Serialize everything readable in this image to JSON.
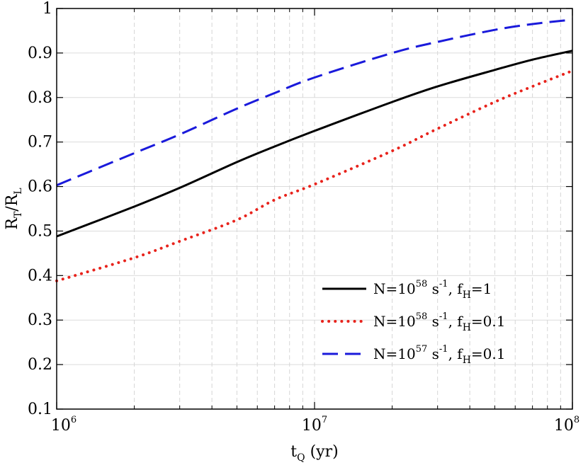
{
  "chart_data": {
    "type": "line",
    "xlabel": {
      "main": "t",
      "sub": "Q",
      "unit": " (yr)"
    },
    "ylabel": {
      "r1": "R",
      "r1sub": "T",
      "slash": "/",
      "r2": "R",
      "r2sub": "L"
    },
    "xscale": "log",
    "xlim": [
      1000000,
      100000000
    ],
    "ylim": [
      0.1,
      1.0
    ],
    "xticks": [
      {
        "value": 1000000,
        "base": "10",
        "exp": "6"
      },
      {
        "value": 10000000,
        "base": "10",
        "exp": "7"
      },
      {
        "value": 100000000,
        "base": "10",
        "exp": "8"
      }
    ],
    "yticks": [
      {
        "value": 0.1,
        "label": "0.1"
      },
      {
        "value": 0.2,
        "label": "0.2"
      },
      {
        "value": 0.3,
        "label": "0.3"
      },
      {
        "value": 0.4,
        "label": "0.4"
      },
      {
        "value": 0.5,
        "label": "0.5"
      },
      {
        "value": 0.6,
        "label": "0.6"
      },
      {
        "value": 0.7,
        "label": "0.7"
      },
      {
        "value": 0.8,
        "label": "0.8"
      },
      {
        "value": 0.9,
        "label": "0.9"
      },
      {
        "value": 1.0,
        "label": "1"
      }
    ],
    "grid": true,
    "legend_position": "lower-right",
    "series": [
      {
        "name": "N=10^58 s^-1, f_H=1",
        "legend": {
          "pre": "N=10",
          "exp1": "58",
          "mid": " s",
          "exp2": "-1",
          "post": ", f",
          "sub": "H",
          "tail": "=1"
        },
        "color": "#000000",
        "style": "solid",
        "x": [
          1000000,
          2000000,
          3000000,
          5000000,
          7000000,
          10000000,
          20000000,
          30000000,
          50000000,
          70000000,
          100000000
        ],
        "y": [
          0.488,
          0.555,
          0.597,
          0.655,
          0.69,
          0.725,
          0.79,
          0.825,
          0.862,
          0.885,
          0.905
        ]
      },
      {
        "name": "N=10^58 s^-1, f_H=0.1",
        "legend": {
          "pre": "N=10",
          "exp1": "58",
          "mid": " s",
          "exp2": "-1",
          "post": ", f",
          "sub": "H",
          "tail": "=0.1"
        },
        "color": "#e8231c",
        "style": "dotted",
        "x": [
          1000000,
          2000000,
          3000000,
          5000000,
          7000000,
          10000000,
          20000000,
          30000000,
          50000000,
          70000000,
          100000000
        ],
        "y": [
          0.388,
          0.44,
          0.477,
          0.525,
          0.57,
          0.605,
          0.68,
          0.73,
          0.79,
          0.825,
          0.86
        ]
      },
      {
        "name": "N=10^57 s^-1, f_H=0.1",
        "legend": {
          "pre": "N=10",
          "exp1": "57",
          "mid": " s",
          "exp2": "-1",
          "post": ", f",
          "sub": "H",
          "tail": "=0.1"
        },
        "color": "#1a1adb",
        "style": "dashed",
        "x": [
          1000000,
          2000000,
          3000000,
          5000000,
          7000000,
          10000000,
          20000000,
          30000000,
          50000000,
          70000000,
          100000000
        ],
        "y": [
          0.603,
          0.675,
          0.717,
          0.775,
          0.81,
          0.845,
          0.9,
          0.925,
          0.952,
          0.965,
          0.975
        ]
      }
    ]
  }
}
